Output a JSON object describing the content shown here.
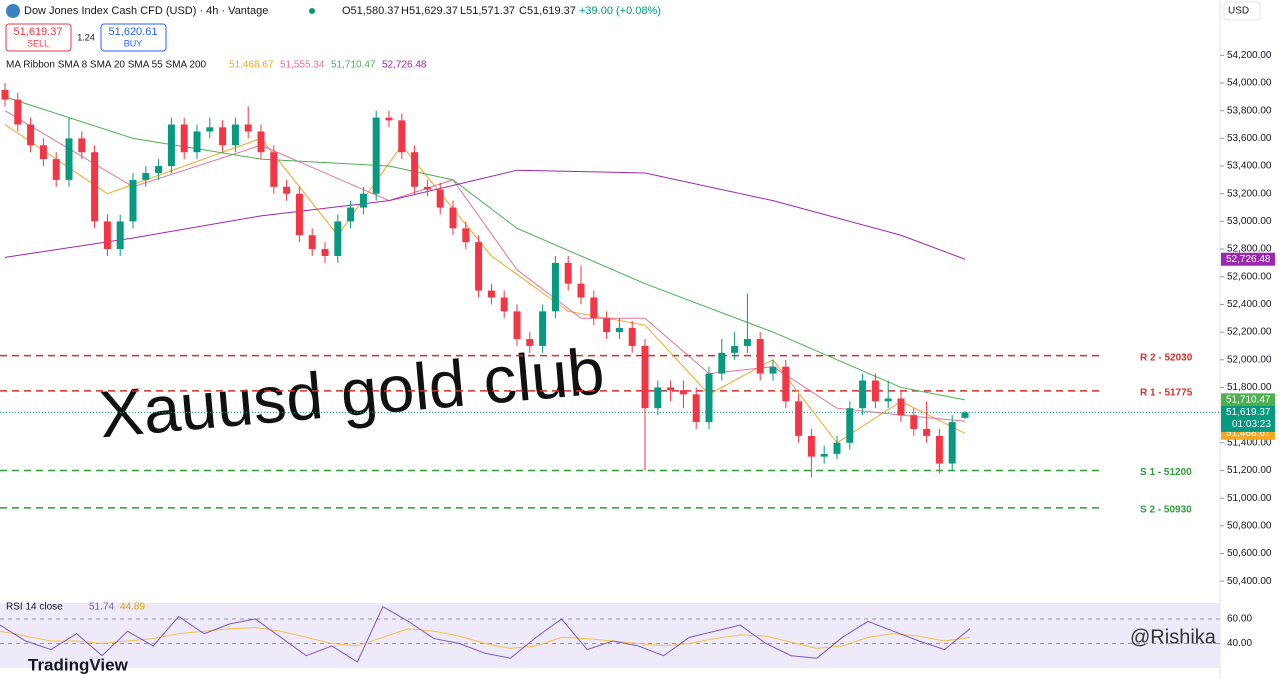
{
  "chart_data": {
    "type": "candlestick",
    "title": "Dow Jones Index Cash CFD (USD) · 4h · Vantage",
    "ohlc_text": {
      "open": "O51,580.37",
      "high": "H51,629.37",
      "low": "L51,571.37",
      "close": "C51,619.37",
      "change": "+39.00 (+0.08%)"
    },
    "sell": {
      "price": "51,619.37",
      "label": "SELL"
    },
    "spread": "1.24",
    "buy": {
      "price": "51,620.61",
      "label": "BUY"
    },
    "currency": "USD",
    "indicator_title": "MA Ribbon SMA 8 SMA 20 SMA 55 SMA 200",
    "watermark": "Xauusd gold club",
    "credit": "@Rishika",
    "brand": "TradingView",
    "ylim": [
      50300,
      54600
    ],
    "yticks": [
      {
        "value": 50400,
        "label": "50,400.00"
      },
      {
        "value": 50600,
        "label": "50,600.00"
      },
      {
        "value": 50800,
        "label": "50,800.00"
      },
      {
        "value": 51000,
        "label": "51,000.00"
      },
      {
        "value": 51200,
        "label": "51,200.00"
      },
      {
        "value": 51400,
        "label": "51,400.00"
      },
      {
        "value": 51800,
        "label": "51,800.00"
      },
      {
        "value": 52000,
        "label": "52,000.00"
      },
      {
        "value": 52200,
        "label": "52,200.00"
      },
      {
        "value": 52400,
        "label": "52,400.00"
      },
      {
        "value": 52600,
        "label": "52,600.00"
      },
      {
        "value": 52800,
        "label": "52,800.00"
      },
      {
        "value": 53000,
        "label": "53,000.00"
      },
      {
        "value": 53200,
        "label": "53,200.00"
      },
      {
        "value": 53400,
        "label": "53,400.00"
      },
      {
        "value": 53600,
        "label": "53,600.00"
      },
      {
        "value": 53800,
        "label": "53,800.00"
      },
      {
        "value": 54000,
        "label": "54,000.00"
      },
      {
        "value": 54200,
        "label": "54,200.00"
      }
    ],
    "up_color": "#089981",
    "down_color": "#f23645",
    "open": [
      53950,
      53880,
      53700,
      53550,
      53450,
      53300,
      53600,
      53500,
      53000,
      52800,
      53000,
      53300,
      53350,
      53400,
      53700,
      53500,
      53650,
      53680,
      53550,
      53700,
      53650,
      53500,
      53250,
      53200,
      52900,
      52800,
      52750,
      53000,
      53100,
      53200,
      53750,
      53730,
      53500,
      53250,
      53230,
      53100,
      52950,
      52850,
      52500,
      52450,
      52350,
      52150,
      52100,
      52350,
      52700,
      52550,
      52450,
      52300,
      52200,
      52230,
      52100,
      51650,
      51800,
      51780,
      51750,
      51550,
      51900,
      52050,
      52100,
      52150,
      51900,
      51950,
      51700,
      51450,
      51300,
      51320,
      51400,
      51650,
      51850,
      51700,
      51720,
      51600,
      51500,
      51450,
      51250,
      51580.37
    ],
    "high": [
      54000,
      53930,
      53750,
      53600,
      53500,
      53750,
      53650,
      53550,
      53050,
      53050,
      53350,
      53400,
      53450,
      53750,
      53750,
      53700,
      53750,
      53730,
      53750,
      53830,
      53700,
      53550,
      53300,
      53250,
      52950,
      52850,
      53050,
      53150,
      53250,
      53800,
      53800,
      53780,
      53550,
      53300,
      53280,
      53150,
      53000,
      52900,
      52550,
      52500,
      52400,
      52200,
      52400,
      52750,
      52750,
      52680,
      52500,
      52350,
      52300,
      52280,
      52150,
      51850,
      51850,
      51850,
      51800,
      51950,
      52150,
      52200,
      52480,
      52200,
      52000,
      52000,
      51750,
      51500,
      51380,
      51450,
      51700,
      51900,
      51900,
      51850,
      51770,
      51650,
      51700,
      51500,
      51600,
      51629.37
    ],
    "low": [
      53830,
      53650,
      53500,
      53400,
      53250,
      53250,
      53450,
      52950,
      52750,
      52750,
      52950,
      53250,
      53300,
      53350,
      53450,
      53450,
      53600,
      53500,
      53500,
      53600,
      53450,
      53200,
      53150,
      52850,
      52750,
      52700,
      52700,
      52950,
      53050,
      53150,
      53680,
      53450,
      53200,
      53180,
      53050,
      52900,
      52800,
      52450,
      52400,
      52300,
      52100,
      52050,
      52050,
      52300,
      52500,
      52400,
      52250,
      52150,
      52150,
      52050,
      51200,
      51600,
      51700,
      51650,
      51500,
      51500,
      51850,
      52000,
      52050,
      51850,
      51850,
      51650,
      51400,
      51150,
      51250,
      51280,
      51350,
      51600,
      51650,
      51650,
      51550,
      51450,
      51400,
      51180,
      51200,
      51571.37
    ],
    "close": [
      53880,
      53700,
      53550,
      53450,
      53300,
      53600,
      53500,
      53000,
      52800,
      53000,
      53300,
      53350,
      53400,
      53700,
      53500,
      53650,
      53680,
      53550,
      53700,
      53650,
      53500,
      53250,
      53200,
      52900,
      52800,
      52750,
      53000,
      53100,
      53200,
      53750,
      53730,
      53500,
      53250,
      53230,
      53100,
      52950,
      52850,
      52500,
      52450,
      52350,
      52150,
      52100,
      52350,
      52700,
      52550,
      52450,
      52300,
      52200,
      52230,
      52100,
      51650,
      51800,
      51780,
      51750,
      51550,
      51900,
      52050,
      52100,
      52150,
      51900,
      51950,
      51700,
      51450,
      51300,
      51320,
      51400,
      51650,
      51850,
      51700,
      51720,
      51600,
      51500,
      51450,
      51250,
      51550,
      51619.37
    ],
    "ma_lines": [
      {
        "name": "SMA 8",
        "value_label": "51,468.67",
        "color": "#f5a623",
        "x": [
          0,
          8,
          14,
          20,
          26,
          31,
          38,
          44,
          50,
          55,
          60,
          65,
          70,
          75
        ],
        "values": [
          53700,
          53200,
          53400,
          53600,
          52900,
          53550,
          52750,
          52350,
          52250,
          51750,
          52000,
          51400,
          51700,
          51468.67
        ]
      },
      {
        "name": "SMA 20",
        "value_label": "51,555.34",
        "color": "#e57399",
        "x": [
          0,
          10,
          20,
          30,
          35,
          40,
          45,
          50,
          55,
          60,
          65,
          70,
          75
        ],
        "values": [
          53800,
          53250,
          53550,
          53150,
          53300,
          52650,
          52300,
          52300,
          51900,
          51950,
          51650,
          51600,
          51555.34
        ]
      },
      {
        "name": "SMA 55",
        "value_label": "51,710.47",
        "color": "#4caf50",
        "x": [
          0,
          10,
          20,
          30,
          35,
          40,
          50,
          60,
          70,
          75
        ],
        "values": [
          53900,
          53600,
          53450,
          53400,
          53300,
          52950,
          52550,
          52200,
          51800,
          51710.47
        ]
      },
      {
        "name": "SMA 200",
        "value_label": "52,726.48",
        "color": "#9c27b0",
        "x": [
          0,
          10,
          20,
          30,
          40,
          50,
          60,
          70,
          75
        ],
        "values": [
          52740,
          52880,
          53040,
          53150,
          53370,
          53350,
          53150,
          52900,
          52726.48
        ]
      }
    ],
    "last_price": {
      "value": 51619.37,
      "label": "51,619.37",
      "countdown": "01:03:23"
    },
    "levels": [
      {
        "label": "R 2 - 52030",
        "value": 52030,
        "color": "#d32f2f"
      },
      {
        "label": "R 1 - 51775",
        "value": 51775,
        "color": "#d32f2f"
      },
      {
        "label": "S 1 - 51200",
        "value": 51200,
        "color": "#2e9e3a"
      },
      {
        "label": "S 2 - 50930",
        "value": 50930,
        "color": "#2e9e3a"
      }
    ],
    "rsi": {
      "title": "RSI 14 close",
      "value_label": "51.74",
      "ma_label": "44.89",
      "ylim": [
        20,
        73
      ],
      "yticks": [
        {
          "value": 60,
          "label": "60.00"
        },
        {
          "value": 40,
          "label": "40.00"
        }
      ],
      "color": "#7e57c2",
      "ma_color": "#f5c242",
      "values": [
        55,
        42,
        35,
        48,
        30,
        50,
        38,
        62,
        48,
        56,
        60,
        45,
        30,
        38,
        25,
        70,
        58,
        44,
        40,
        32,
        28,
        45,
        60,
        35,
        42,
        38,
        30,
        45,
        50,
        55,
        40,
        30,
        28,
        45,
        58,
        50,
        42,
        35,
        52
      ],
      "ma_values": [
        50,
        46,
        42,
        42,
        40,
        42,
        44,
        48,
        50,
        52,
        53,
        50,
        45,
        40,
        38,
        45,
        52,
        50,
        46,
        40,
        36,
        38,
        45,
        44,
        42,
        40,
        38,
        40,
        44,
        47,
        46,
        41,
        36,
        38,
        45,
        48,
        46,
        42,
        45
      ]
    }
  }
}
